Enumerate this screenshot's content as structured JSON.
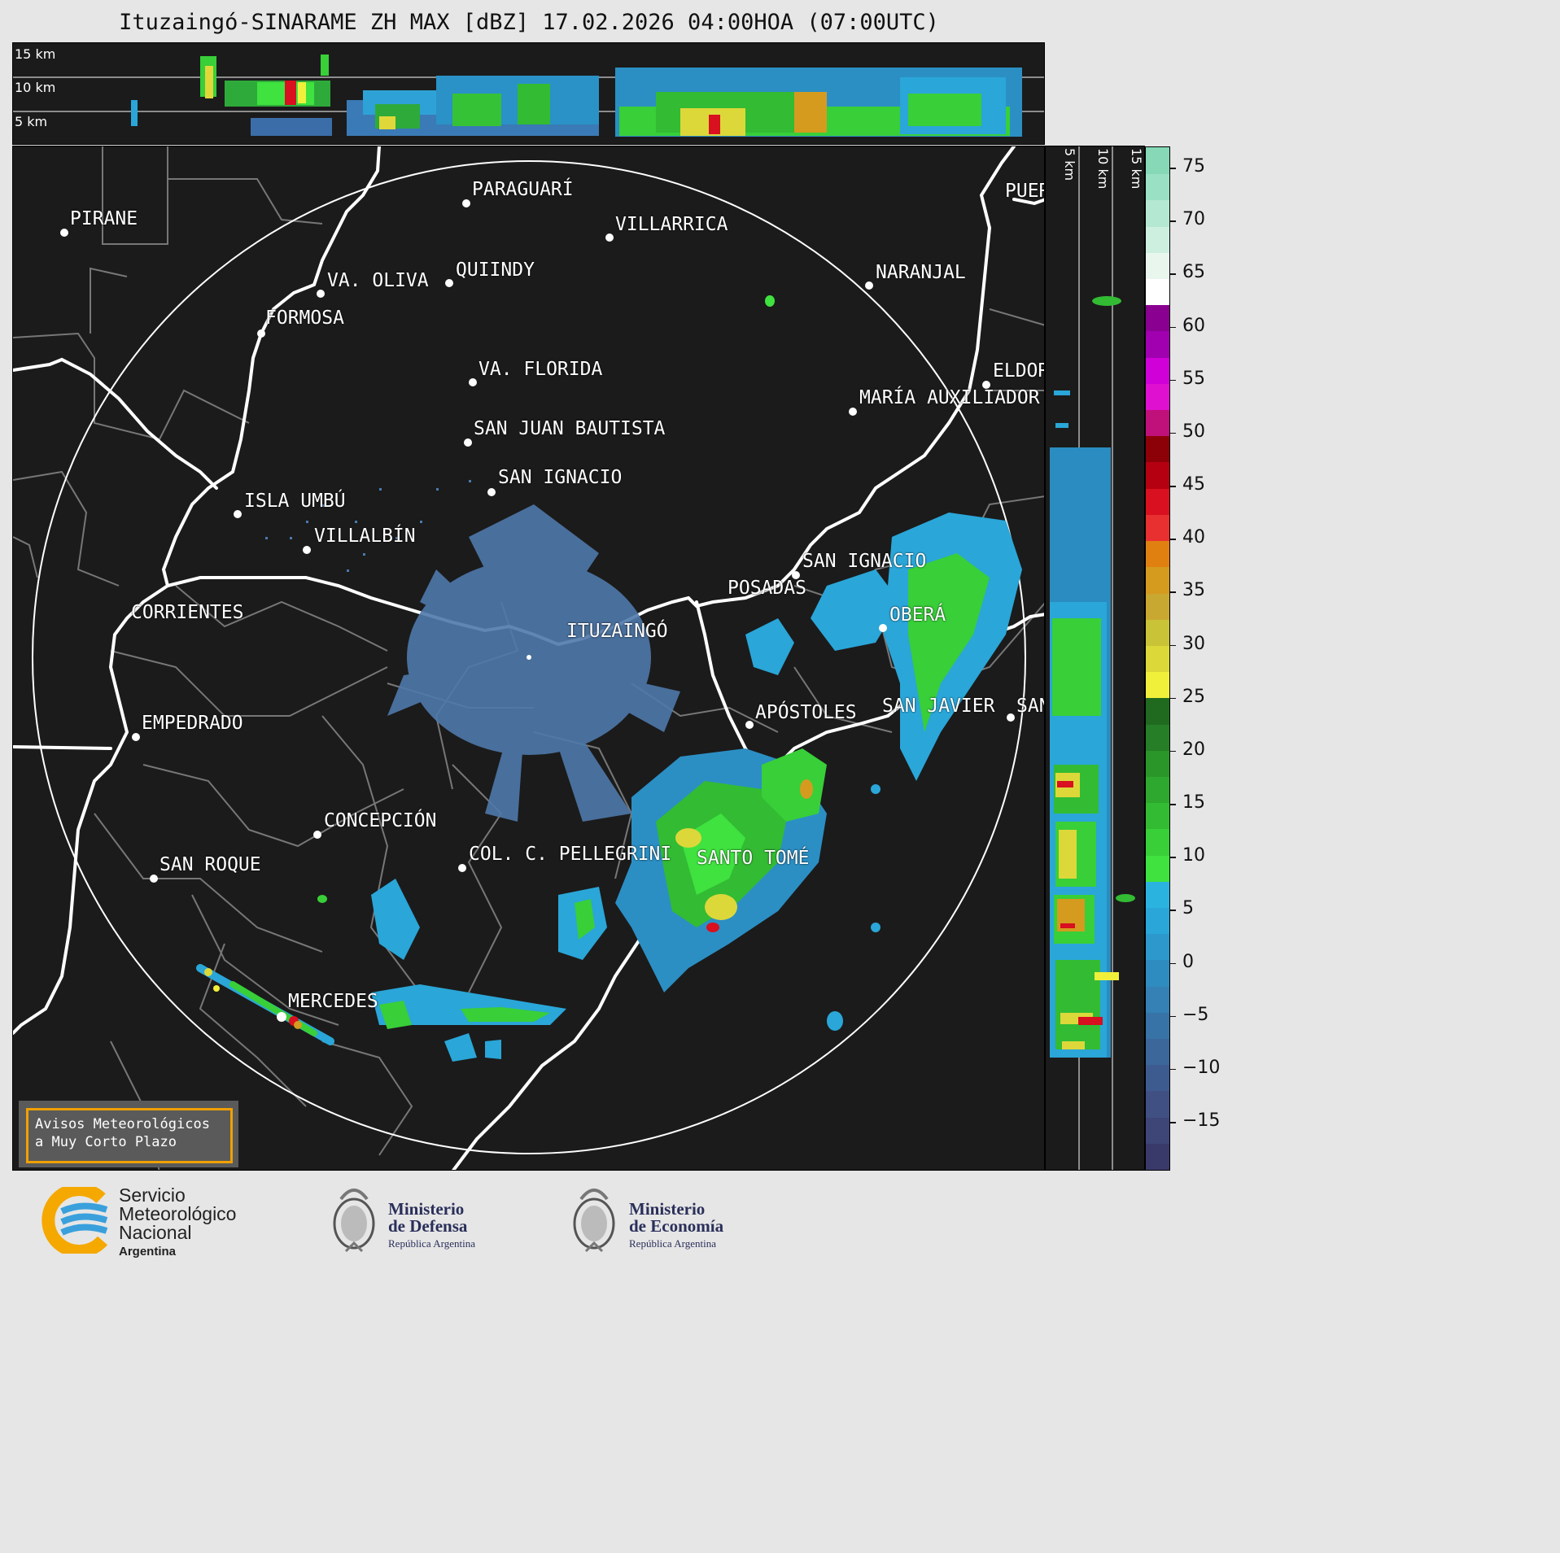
{
  "title": "Ituzaingó-SINARAME ZH MAX [dBZ] 17.02.2026 04:00HOA (07:00UTC)",
  "top_strip": {
    "altitudes": [
      "15 km",
      "10 km",
      "5 km"
    ]
  },
  "side_strip": {
    "altitudes": [
      "5 km",
      "10 km",
      "15 km"
    ]
  },
  "radar_site": "ITUZAINGÓ",
  "cities": [
    {
      "name": "PIRANE"
    },
    {
      "name": "PARAGUARÍ"
    },
    {
      "name": "VILLARRICA"
    },
    {
      "name": "VA. OLIVA"
    },
    {
      "name": "QUIINDY"
    },
    {
      "name": "NARANJAL"
    },
    {
      "name": "FORMOSA"
    },
    {
      "name": "PUER"
    },
    {
      "name": "ELDOR"
    },
    {
      "name": "VA. FLORIDA"
    },
    {
      "name": "MARÍA AUXILIADOR"
    },
    {
      "name": "SAN JUAN BAUTISTA"
    },
    {
      "name": "SAN IGNACIO"
    },
    {
      "name": "ISLA UMBÚ"
    },
    {
      "name": "VILLALBÍN"
    },
    {
      "name": "SAN IGNACIO"
    },
    {
      "name": "POSADAS"
    },
    {
      "name": "OBERÁ"
    },
    {
      "name": "CORRIENTES"
    },
    {
      "name": "APÓSTOLES"
    },
    {
      "name": "SAN JAVIER"
    },
    {
      "name": "SAN"
    },
    {
      "name": "EMPEDRADO"
    },
    {
      "name": "CONCEPCIÓN"
    },
    {
      "name": "COL. C. PELLEGRINI"
    },
    {
      "name": "SANTO TOMÉ"
    },
    {
      "name": "SAN ROQUE"
    },
    {
      "name": "MERCEDES"
    }
  ],
  "colorbar": {
    "ticks": [
      "75",
      "70",
      "65",
      "60",
      "55",
      "50",
      "45",
      "40",
      "35",
      "30",
      "25",
      "20",
      "15",
      "10",
      "5",
      "0",
      "−5",
      "−10",
      "−15"
    ],
    "colors": [
      "#3a3a6a",
      "#3e4577",
      "#405083",
      "#3e5b8f",
      "#3b679b",
      "#3873a7",
      "#3580b4",
      "#2f8cc0",
      "#2c98cb",
      "#2aa6d8",
      "#2bb3df",
      "#3fe23f",
      "#38cf38",
      "#33bb33",
      "#2ea82e",
      "#2a962a",
      "#267e26",
      "#206a20",
      "#f0f03a",
      "#dcd83a",
      "#c9c338",
      "#c8a830",
      "#d49b1f",
      "#e08010",
      "#e83030",
      "#d81020",
      "#b40010",
      "#8c0008",
      "#c0107a",
      "#e010d0",
      "#d000d8",
      "#a000b0",
      "#8a0090",
      "#ffffff",
      "#e8f6ee",
      "#cdefe0",
      "#b4e8d2",
      "#9ae0c4",
      "#86d8b6"
    ],
    "units": "dBZ"
  },
  "warning_box": {
    "line1": "Avisos Meteorológicos",
    "line2": "a Muy Corto Plazo"
  },
  "logos": {
    "smn": {
      "line1": "Servicio",
      "line2": "Meteorológico",
      "line3": "Nacional",
      "line4": "Argentina"
    },
    "defensa": {
      "line1": "Ministerio",
      "line2": "de Defensa",
      "line3": "República Argentina"
    },
    "economia": {
      "line1": "Ministerio",
      "line2": "de Economía",
      "line3": "República Argentina"
    }
  }
}
